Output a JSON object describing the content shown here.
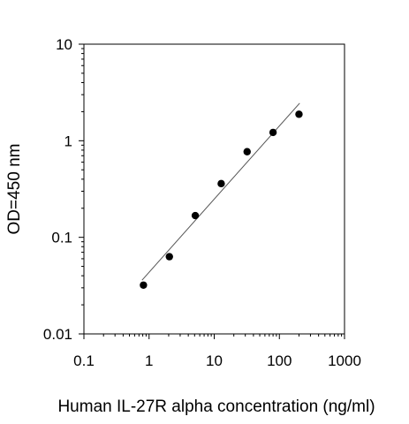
{
  "chart_data": {
    "type": "scatter",
    "title": "",
    "xlabel": "Human IL-27R alpha concentration (ng/ml)",
    "ylabel": "OD=450 nm",
    "x_scale": "log",
    "y_scale": "log",
    "xlim": [
      0.1,
      1000
    ],
    "ylim": [
      0.01,
      10
    ],
    "x_ticks": [
      {
        "value": 0.1,
        "label": "0.1"
      },
      {
        "value": 1,
        "label": "1"
      },
      {
        "value": 10,
        "label": "10"
      },
      {
        "value": 100,
        "label": "100"
      },
      {
        "value": 1000,
        "label": "1000"
      }
    ],
    "y_ticks": [
      {
        "value": 0.01,
        "label": "0.01"
      },
      {
        "value": 0.1,
        "label": "0.1"
      },
      {
        "value": 1,
        "label": "1"
      },
      {
        "value": 10,
        "label": "10"
      }
    ],
    "grid": false,
    "legend": "none",
    "series": [
      {
        "x": [
          0.82,
          2.05,
          5.12,
          12.8,
          32,
          80,
          200
        ],
        "y": [
          0.032,
          0.063,
          0.168,
          0.36,
          0.77,
          1.22,
          1.88
        ],
        "color": "#000000"
      }
    ],
    "fit_line": {
      "x": [
        0.78,
        205
      ],
      "y": [
        0.036,
        2.45
      ],
      "color": "#555555"
    }
  }
}
